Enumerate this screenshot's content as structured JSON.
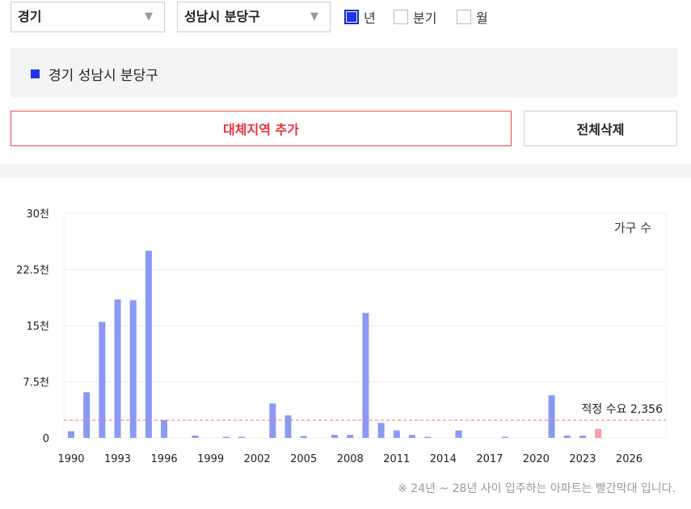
{
  "filters": {
    "province": "경기",
    "district": "성남시 분당구",
    "periods": [
      {
        "label": "년",
        "checked": true
      },
      {
        "label": "분기",
        "checked": false
      },
      {
        "label": "월",
        "checked": false
      }
    ]
  },
  "selected_regions": [
    {
      "label": "경기 성남시 분당구",
      "color": "#1f35e8"
    }
  ],
  "buttons": {
    "add_region": "대체지역 추가",
    "delete_all": "전체삭제"
  },
  "chart_data": {
    "type": "bar",
    "series_label": "가구 수",
    "categories": [
      1990,
      1991,
      1992,
      1993,
      1994,
      1995,
      1996,
      1997,
      1998,
      1999,
      2000,
      2001,
      2002,
      2003,
      2004,
      2005,
      2006,
      2007,
      2008,
      2009,
      2010,
      2011,
      2012,
      2013,
      2014,
      2015,
      2016,
      2017,
      2018,
      2019,
      2020,
      2021,
      2022,
      2023,
      2024,
      2025,
      2026,
      2027,
      2028
    ],
    "values": [
      900,
      6100,
      15500,
      18500,
      18400,
      25000,
      2400,
      0,
      300,
      0,
      150,
      150,
      0,
      4600,
      3000,
      250,
      0,
      400,
      400,
      16700,
      2000,
      1000,
      400,
      150,
      0,
      1000,
      0,
      0,
      150,
      0,
      0,
      5700,
      300,
      300,
      1200,
      0,
      0,
      0,
      0
    ],
    "highlight_range": [
      2024,
      2028
    ],
    "bar_color": "#8b99f3",
    "highlight_color": "#f4a0a6",
    "x_ticks": [
      "1990",
      "1993",
      "1996",
      "1999",
      "2002",
      "2005",
      "2008",
      "2011",
      "2014",
      "2017",
      "2020",
      "2023",
      "2026"
    ],
    "y_ticks": [
      {
        "value": 0,
        "label": "0"
      },
      {
        "value": 7500,
        "label": "7.5천"
      },
      {
        "value": 15000,
        "label": "15천"
      },
      {
        "value": 22500,
        "label": "22.5천"
      },
      {
        "value": 30000,
        "label": "30천"
      }
    ],
    "ylim": [
      0,
      30000
    ],
    "reference_line": {
      "value": 2356,
      "label": "적정 수요 2,356",
      "color": "#e8323c"
    },
    "grid": true
  },
  "footnote": "※ 24년 ~ 28년 사이 입주하는 아파트는 빨간막대 입니다."
}
